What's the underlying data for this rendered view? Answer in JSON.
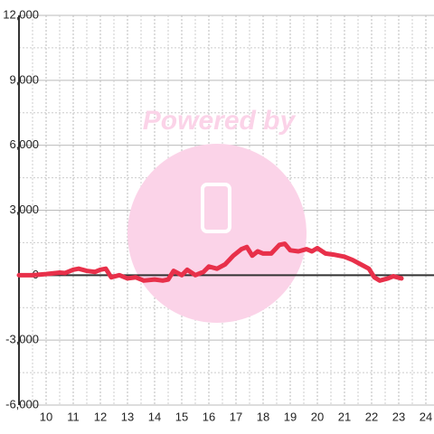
{
  "watermark": "Powered by",
  "chart_data": {
    "type": "line",
    "x": [
      9,
      9.5,
      10,
      10.5,
      10.7,
      11,
      11.2,
      11.5,
      11.8,
      12,
      12.2,
      12.4,
      12.7,
      13,
      13.3,
      13.6,
      14,
      14.3,
      14.5,
      14.7,
      15,
      15.2,
      15.5,
      15.8,
      16,
      16.3,
      16.6,
      16.9,
      17.2,
      17.4,
      17.6,
      17.8,
      18,
      18.3,
      18.6,
      18.8,
      19,
      19.3,
      19.6,
      19.8,
      20,
      20.3,
      20.6,
      21,
      21.3,
      21.6,
      21.9,
      22.1,
      22.3,
      22.6,
      22.8,
      23.1
    ],
    "series": [
      {
        "color": "#e8304a",
        "values": [
          0,
          0,
          50,
          120,
          100,
          250,
          300,
          200,
          150,
          250,
          300,
          -100,
          0,
          -150,
          -100,
          -250,
          -200,
          -250,
          -200,
          200,
          0,
          250,
          0,
          150,
          400,
          300,
          500,
          900,
          1200,
          1300,
          900,
          1100,
          1000,
          1000,
          1400,
          1450,
          1150,
          1100,
          1200,
          1100,
          1250,
          1000,
          950,
          850,
          700,
          500,
          300,
          -100,
          -250,
          -150,
          -50,
          -150
        ]
      }
    ],
    "xlim": [
      9,
      24.3
    ],
    "ylim": [
      -6000,
      12000
    ],
    "xticks": [
      10,
      11,
      12,
      13,
      14,
      15,
      16,
      17,
      18,
      19,
      20,
      21,
      22,
      23,
      24
    ],
    "x_minor_ticks": [
      9.5,
      10.5,
      11.5,
      12.5,
      13.5,
      14.5,
      15.5,
      16.5,
      17.5,
      18.5,
      19.5,
      20.5,
      21.5,
      22.5,
      23.5
    ],
    "yticks": [
      {
        "value": -6000,
        "label": "-6,000"
      },
      {
        "value": -3000,
        "label": "-3,000"
      },
      0,
      {
        "value": 3000,
        "label": "3,000"
      },
      {
        "value": 6000,
        "label": "6,000"
      },
      {
        "value": 9000,
        "label": "9,000"
      },
      {
        "value": 12000,
        "label": "12,000"
      }
    ],
    "y_minor_ticks": [
      -4500,
      -1500,
      1500,
      4500,
      7500,
      10500
    ],
    "grid": true
  }
}
